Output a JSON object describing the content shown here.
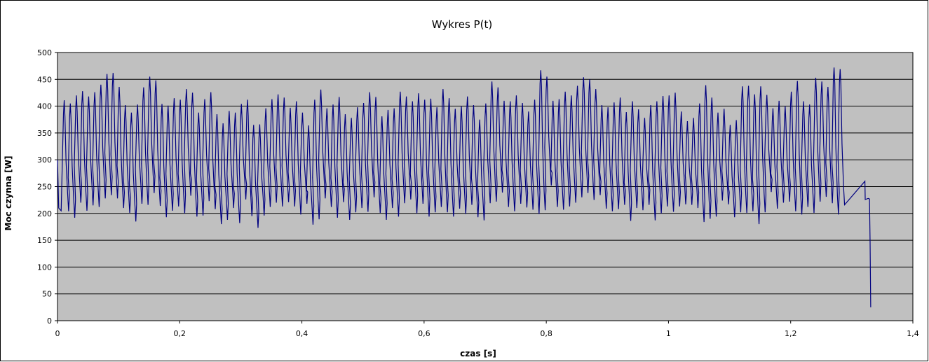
{
  "chart_data": {
    "type": "line",
    "title": "Wykres P(t)",
    "xlabel": "czas [s]",
    "ylabel": "Moc czynna [W]",
    "xlim": [
      0,
      1.4
    ],
    "ylim": [
      0,
      500
    ],
    "x_ticks": [
      "0",
      "0,2",
      "0,4",
      "0,6",
      "0,8",
      "1",
      "1,2",
      "1,4"
    ],
    "y_ticks": [
      "0",
      "50",
      "100",
      "150",
      "200",
      "250",
      "300",
      "350",
      "400",
      "450",
      "500"
    ],
    "grid": true,
    "legend": "none",
    "colors": {
      "plot_bg": "#c0c0c0",
      "line": "#000080",
      "grid": "#000000"
    },
    "series": [
      {
        "x": [
          0.011,
          0.021,
          0.031,
          0.041,
          0.051,
          0.061,
          0.071,
          0.081,
          0.091,
          0.101,
          0.111,
          0.121,
          0.131,
          0.141,
          0.151,
          0.161,
          0.171,
          0.181,
          0.191,
          0.201,
          0.211,
          0.221,
          0.231,
          0.241,
          0.251,
          0.261,
          0.271,
          0.281,
          0.291,
          0.301,
          0.311,
          0.321,
          0.331,
          0.341,
          0.351,
          0.361,
          0.371,
          0.381,
          0.391,
          0.401,
          0.411,
          0.421,
          0.431,
          0.441,
          0.451,
          0.461,
          0.471,
          0.481,
          0.491,
          0.501,
          0.511,
          0.521,
          0.531,
          0.541,
          0.551,
          0.561,
          0.571,
          0.581,
          0.591,
          0.601,
          0.611,
          0.621,
          0.631,
          0.641,
          0.651,
          0.661,
          0.671,
          0.681,
          0.691,
          0.701,
          0.711,
          0.721,
          0.731,
          0.741,
          0.751,
          0.761,
          0.771,
          0.781,
          0.791,
          0.801,
          0.811,
          0.821,
          0.831,
          0.841,
          0.851,
          0.861,
          0.871,
          0.881,
          0.891,
          0.901,
          0.911,
          0.921,
          0.931,
          0.941,
          0.951,
          0.961,
          0.971,
          0.981,
          0.991,
          1.001,
          1.011,
          1.021,
          1.031,
          1.041,
          1.051,
          1.061,
          1.071,
          1.081,
          1.091,
          1.101,
          1.111,
          1.121,
          1.131,
          1.141,
          1.151,
          1.161,
          1.171,
          1.181,
          1.191,
          1.201,
          1.211,
          1.221,
          1.231,
          1.241,
          1.251,
          1.261,
          1.271,
          1.281,
          1.291,
          1.301,
          1.311,
          1.321
        ],
        "peaks": [
          411,
          405,
          420,
          428,
          418,
          426,
          440,
          460,
          462,
          436,
          402,
          388,
          403,
          435,
          455,
          448,
          404,
          401,
          415,
          412,
          432,
          425,
          388,
          413,
          426,
          385,
          368,
          391,
          388,
          404,
          412,
          365,
          366,
          396,
          413,
          422,
          416,
          397,
          409,
          388,
          364,
          412,
          431,
          396,
          403,
          417,
          385,
          378,
          398,
          406,
          426,
          417,
          381,
          393,
          396,
          427,
          418,
          409,
          424,
          412,
          414,
          398,
          432,
          415,
          395,
          400,
          418,
          402,
          375,
          405,
          446,
          435,
          410,
          409,
          420,
          406,
          390,
          412,
          467,
          455,
          410,
          413,
          427,
          420,
          438,
          454,
          450,
          432,
          402,
          398,
          407,
          416,
          389,
          409,
          394,
          378,
          402,
          409,
          419,
          420,
          425,
          390,
          372,
          378,
          405,
          439,
          416,
          388,
          395,
          365,
          374,
          437,
          438,
          422,
          437,
          421,
          396,
          410,
          400,
          427,
          447,
          409,
          403,
          453,
          446,
          436,
          472,
          469
        ],
        "troughs": [
          204,
          192,
          220,
          205,
          215,
          212,
          228,
          234,
          228,
          210,
          201,
          185,
          218,
          216,
          238,
          214,
          193,
          205,
          213,
          200,
          233,
          194,
          196,
          223,
          208,
          180,
          188,
          210,
          182,
          226,
          195,
          173,
          196,
          212,
          220,
          213,
          221,
          213,
          198,
          218,
          179,
          189,
          228,
          212,
          192,
          221,
          188,
          202,
          210,
          203,
          230,
          201,
          188,
          210,
          194,
          219,
          226,
          200,
          218,
          194,
          202,
          212,
          202,
          194,
          209,
          199,
          216,
          193,
          187,
          219,
          222,
          239,
          212,
          204,
          218,
          211,
          207,
          199,
          206,
          252,
          212,
          207,
          213,
          220,
          230,
          238,
          225,
          234,
          209,
          204,
          208,
          216,
          186,
          210,
          206,
          216,
          187,
          200,
          213,
          203,
          213,
          217,
          216,
          210,
          184,
          190,
          194,
          224,
          217,
          193,
          202,
          201,
          204,
          180,
          202,
          240,
          209,
          220,
          222,
          204,
          198,
          212,
          201,
          222,
          231,
          219,
          198,
          216,
          210,
          242,
          208,
          245
        ]
      }
    ],
    "end_segment": {
      "x": [
        1.3215,
        1.322,
        1.327,
        1.329,
        1.33,
        1.331
      ],
      "y": [
        260,
        226,
        228,
        227,
        145,
        25
      ]
    }
  }
}
